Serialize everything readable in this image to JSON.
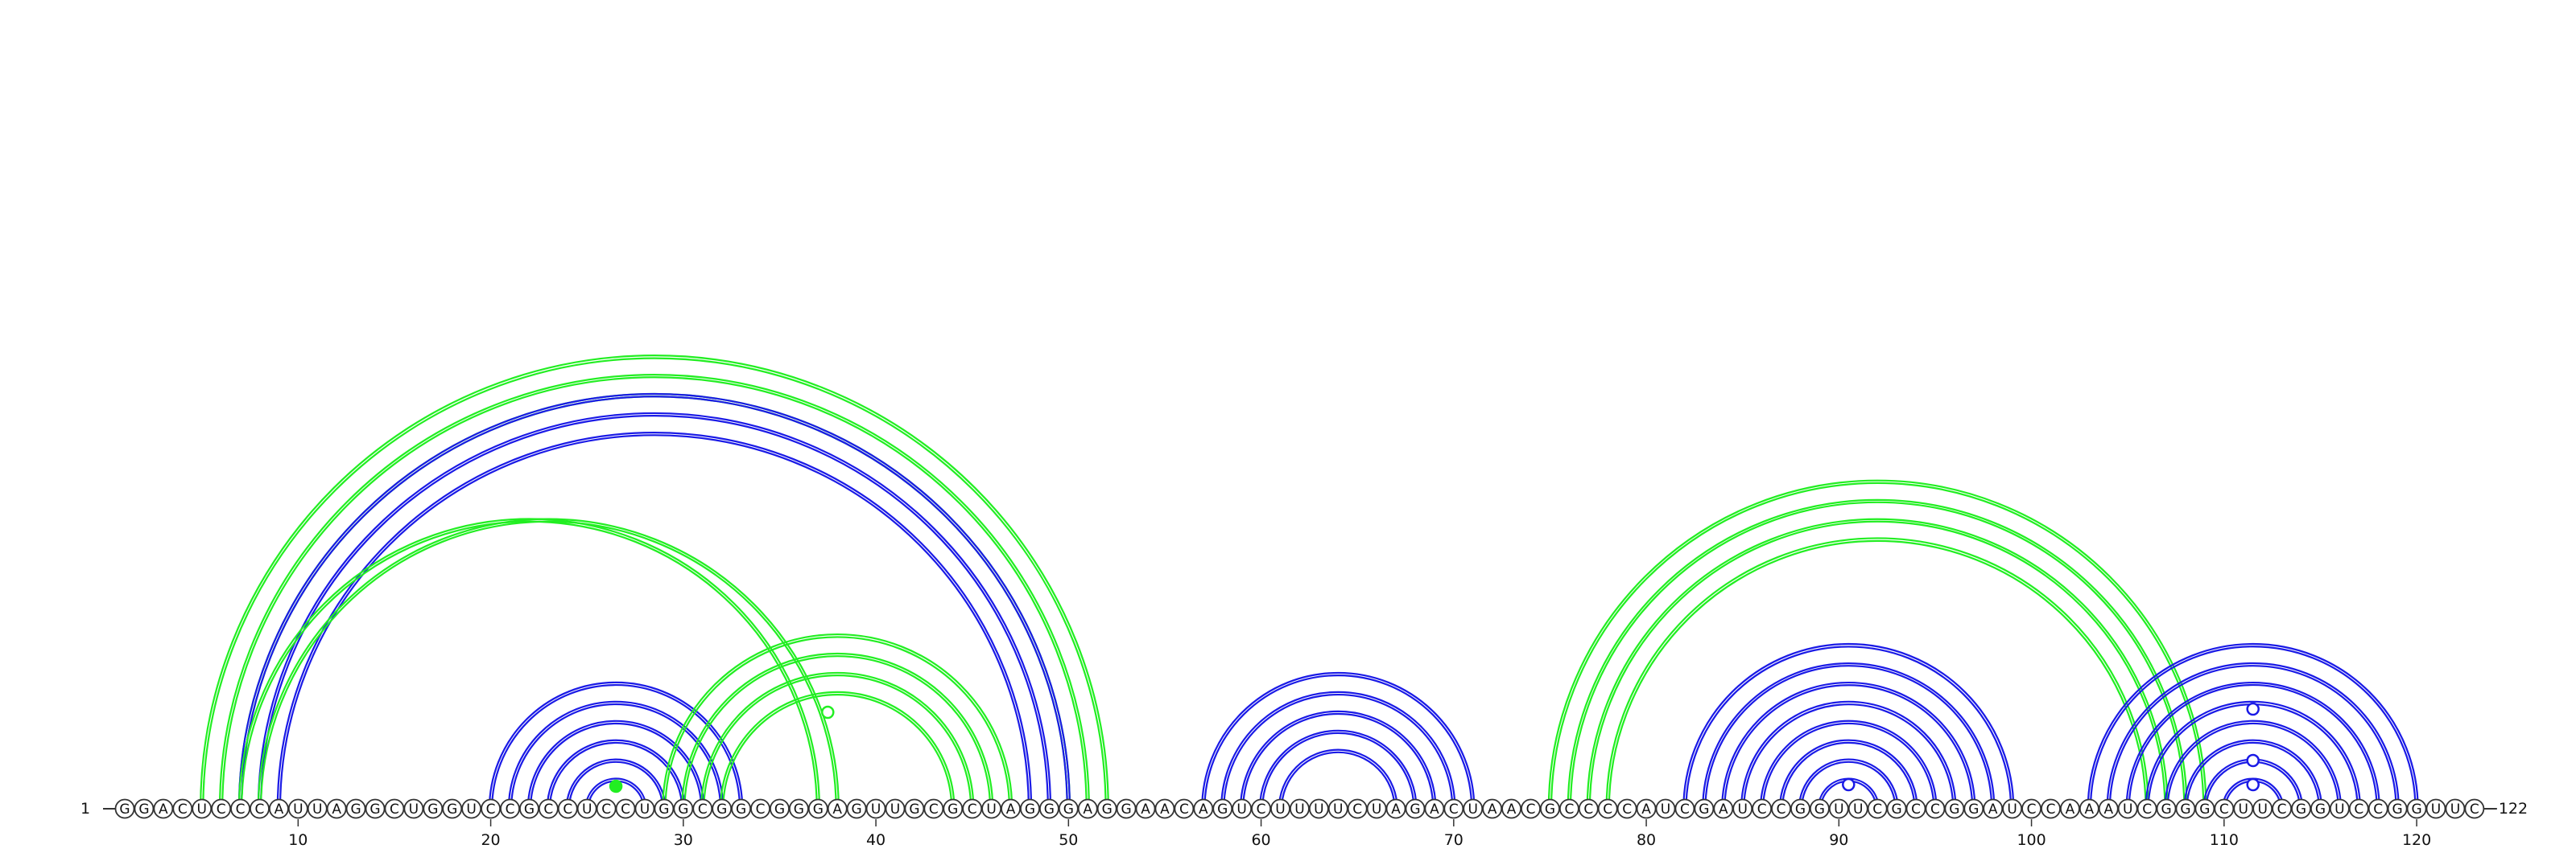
{
  "sequence": "GGACUCCCAUUAGGCUGGUCCGCCUCCUGGCGGCGGGAGUUGCGCUAGGGAGGAACAGUCUUUUCUAGACUAACGCCCCAUCGAUCCGGUUCGCCGGAUCCAAAUCGGGCUUCGGUCCGGUUC",
  "start_label": "1",
  "end_label": "122",
  "tick_positions": [
    10,
    20,
    30,
    40,
    50,
    60,
    70,
    80,
    90,
    100,
    110,
    120
  ],
  "colors": {
    "green": "#22ee22",
    "blue": "#1a1ae6",
    "backbone": "#333333"
  },
  "arc_groups": [
    {
      "color": "green",
      "pairs": [
        [
          5,
          52
        ],
        [
          6,
          51
        ],
        [
          7,
          50
        ]
      ]
    },
    {
      "color": "blue",
      "pairs": [
        [
          7,
          50
        ],
        [
          8,
          49
        ],
        [
          9,
          48
        ]
      ]
    },
    {
      "color": "green",
      "pairs": [
        [
          7,
          37
        ],
        [
          8,
          38
        ]
      ]
    },
    {
      "color": "blue",
      "pairs": [
        [
          20,
          33
        ],
        [
          21,
          32
        ],
        [
          22,
          31
        ],
        [
          23,
          30
        ],
        [
          24,
          29
        ],
        [
          25,
          28
        ]
      ]
    },
    {
      "color": "green",
      "pairs": [
        [
          29,
          47
        ],
        [
          30,
          46
        ],
        [
          31,
          45
        ],
        [
          32,
          44
        ]
      ]
    },
    {
      "color": "blue",
      "pairs": [
        [
          57,
          71
        ],
        [
          58,
          70
        ],
        [
          59,
          69
        ],
        [
          60,
          68
        ],
        [
          61,
          67
        ]
      ]
    },
    {
      "color": "green",
      "pairs": [
        [
          75,
          109
        ],
        [
          76,
          108
        ],
        [
          77,
          107
        ],
        [
          78,
          106
        ]
      ]
    },
    {
      "color": "blue",
      "pairs": [
        [
          82,
          99
        ],
        [
          83,
          98
        ],
        [
          84,
          97
        ],
        [
          85,
          96
        ],
        [
          86,
          95
        ],
        [
          87,
          94
        ],
        [
          88,
          93
        ],
        [
          89,
          92
        ]
      ]
    },
    {
      "color": "blue",
      "pairs": [
        [
          103,
          120
        ],
        [
          104,
          119
        ],
        [
          105,
          118
        ],
        [
          106,
          117
        ],
        [
          107,
          116
        ],
        [
          108,
          115
        ],
        [
          109,
          114
        ],
        [
          110,
          113
        ]
      ]
    }
  ],
  "markers": [
    {
      "pos": 26.5,
      "level": 0.5,
      "color": "green",
      "filled": true
    },
    {
      "pos": 37.5,
      "level": 2.8,
      "color": "green",
      "filled": false
    },
    {
      "pos": 90.5,
      "level": 0.55,
      "color": "blue",
      "filled": false
    },
    {
      "pos": 111.5,
      "level": 0.55,
      "color": "blue",
      "filled": false
    },
    {
      "pos": 111.5,
      "level": 1.3,
      "color": "blue",
      "filled": false
    },
    {
      "pos": 111.5,
      "level": 2.9,
      "color": "blue",
      "filled": false
    }
  ]
}
